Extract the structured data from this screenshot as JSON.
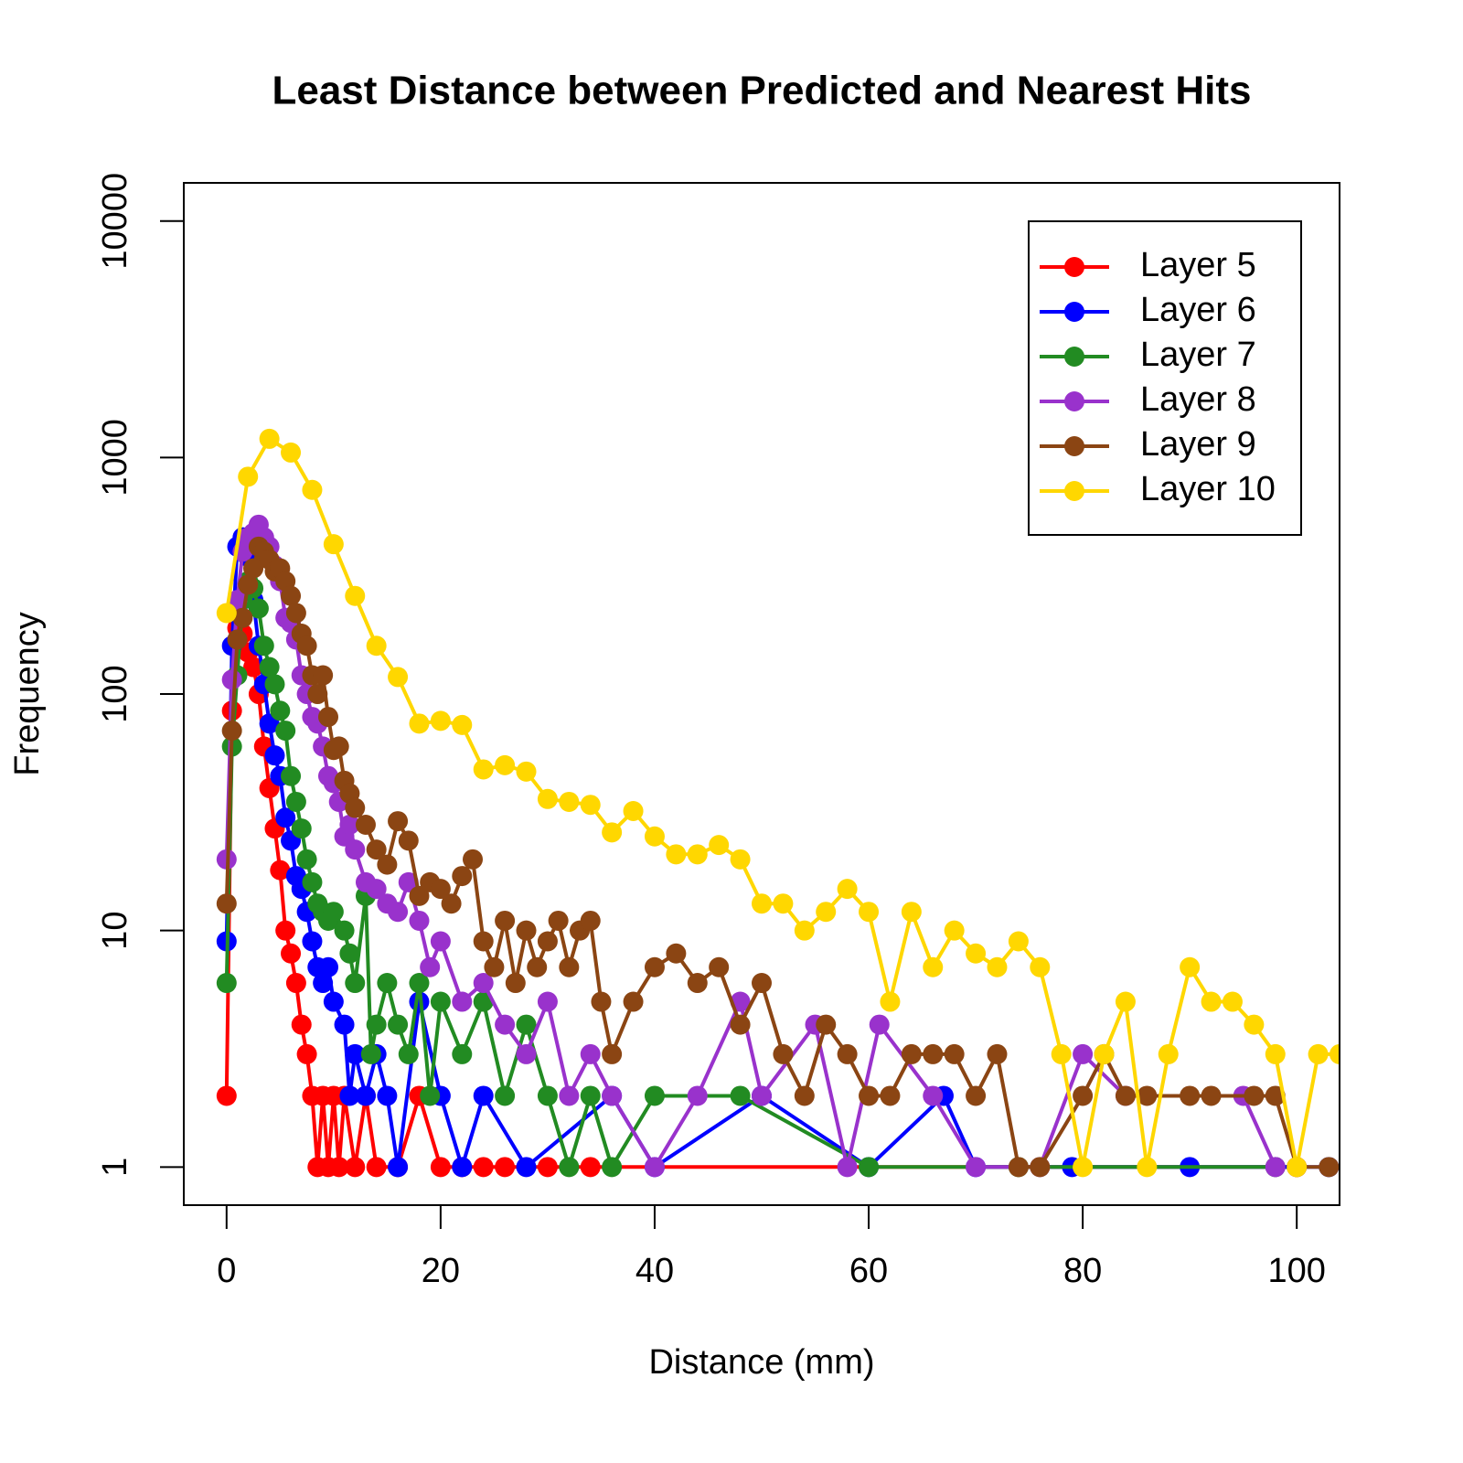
{
  "chart_data": {
    "type": "line",
    "title": "Least Distance between Predicted and Nearest Hits",
    "x_label": "Distance (mm)",
    "y_label": "Frequency",
    "xlim": [
      -4,
      104
    ],
    "ylim": [
      0.69,
      14500
    ],
    "y_log": true,
    "xticks": [
      0,
      20,
      40,
      60,
      80,
      100
    ],
    "yticks": [
      1,
      10,
      100,
      1000,
      10000
    ],
    "legend_position": "top-right",
    "series": [
      {
        "name": "Layer 5",
        "color": "#ff0000",
        "x": [
          0,
          0.5,
          1,
          1.5,
          2,
          2.5,
          3,
          3.5,
          4,
          4.5,
          5,
          5.5,
          6,
          6.5,
          7,
          7.5,
          8,
          8.5,
          9,
          9.5,
          10,
          10.5,
          11,
          12,
          13,
          14,
          16,
          18,
          20,
          22,
          24,
          26,
          30,
          34,
          100
        ],
        "values": [
          2,
          85,
          190,
          180,
          150,
          130,
          100,
          60,
          40,
          27,
          18,
          10,
          8,
          6,
          4,
          3,
          2,
          1,
          2,
          1,
          2,
          1,
          2,
          1,
          2,
          1,
          1,
          2,
          1,
          1,
          1,
          1,
          1,
          1,
          1
        ]
      },
      {
        "name": "Layer 6",
        "color": "#0000ff",
        "x": [
          0,
          0.5,
          1,
          1.5,
          2,
          2.5,
          3,
          3.5,
          4,
          4.5,
          5,
          5.5,
          6,
          6.5,
          7,
          7.5,
          8,
          8.5,
          9,
          9.5,
          10,
          11,
          11.5,
          12,
          13,
          14,
          15,
          16,
          18,
          20,
          22,
          24,
          28,
          36,
          40,
          50,
          60,
          67,
          70,
          79,
          90,
          103
        ],
        "values": [
          9,
          160,
          420,
          460,
          380,
          250,
          160,
          110,
          75,
          55,
          45,
          30,
          24,
          17,
          15,
          12,
          9,
          7,
          6,
          7,
          5,
          4,
          2,
          3,
          2,
          3,
          2,
          1,
          5,
          2,
          1,
          2,
          1,
          2,
          1,
          2,
          1,
          2,
          1,
          1,
          1,
          1
        ]
      },
      {
        "name": "Layer 7",
        "color": "#228b22",
        "x": [
          0,
          0.5,
          1,
          1.5,
          2,
          2.5,
          3,
          3.5,
          4,
          4.5,
          5,
          5.5,
          6,
          6.5,
          7,
          7.5,
          8,
          8.5,
          9,
          9.5,
          10,
          11,
          11.5,
          12,
          13,
          13.5,
          14,
          15,
          16,
          17,
          18,
          19,
          20,
          22,
          24,
          26,
          28,
          30,
          32,
          34,
          36,
          40,
          48,
          60,
          74,
          98
        ],
        "values": [
          6,
          60,
          120,
          250,
          300,
          280,
          230,
          160,
          130,
          110,
          85,
          70,
          45,
          35,
          27,
          20,
          16,
          13,
          12,
          11,
          12,
          10,
          8,
          6,
          14,
          3,
          4,
          6,
          4,
          3,
          6,
          2,
          5,
          3,
          5,
          2,
          4,
          2,
          1,
          2,
          1,
          2,
          2,
          1,
          1,
          1
        ]
      },
      {
        "name": "Layer 8",
        "color": "#9932cc",
        "x": [
          0,
          0.5,
          1,
          1.5,
          2,
          2.5,
          3,
          3.5,
          4,
          4.5,
          5,
          5.5,
          6,
          6.5,
          7,
          7.5,
          8,
          8.5,
          9,
          9.5,
          10,
          10.5,
          11,
          11.5,
          12,
          13,
          14,
          15,
          16,
          17,
          18,
          19,
          20,
          22,
          24,
          26,
          28,
          30,
          32,
          34,
          36,
          40,
          44,
          48,
          50,
          55,
          58,
          61,
          66,
          70,
          76,
          80,
          84,
          95,
          98
        ],
        "values": [
          20,
          115,
          250,
          400,
          460,
          480,
          520,
          460,
          420,
          350,
          300,
          210,
          200,
          170,
          120,
          100,
          80,
          75,
          60,
          45,
          42,
          35,
          25,
          28,
          22,
          16,
          15,
          13,
          12,
          16,
          11,
          7,
          9,
          5,
          6,
          4,
          3,
          5,
          2,
          3,
          2,
          1,
          2,
          5,
          2,
          4,
          1,
          4,
          2,
          1,
          1,
          3,
          2,
          2,
          1
        ]
      },
      {
        "name": "Layer 9",
        "color": "#8b4513",
        "x": [
          0,
          0.5,
          1,
          1.5,
          2,
          2.5,
          3,
          3.5,
          4,
          4.5,
          5,
          5.5,
          6,
          6.5,
          7,
          7.5,
          8,
          8.5,
          9,
          9.5,
          10,
          10.5,
          11,
          11.5,
          12,
          13,
          14,
          15,
          16,
          17,
          18,
          19,
          20,
          21,
          22,
          23,
          24,
          25,
          26,
          27,
          28,
          29,
          30,
          31,
          32,
          33,
          34,
          35,
          36,
          38,
          40,
          42,
          44,
          46,
          48,
          50,
          52,
          54,
          56,
          58,
          60,
          62,
          64,
          66,
          68,
          70,
          72,
          74,
          76,
          80,
          82,
          84,
          86,
          90,
          92,
          96,
          98,
          100,
          103
        ],
        "values": [
          13,
          70,
          170,
          210,
          290,
          340,
          420,
          400,
          370,
          330,
          340,
          300,
          260,
          220,
          180,
          160,
          120,
          100,
          120,
          80,
          58,
          60,
          43,
          38,
          33,
          28,
          22,
          19,
          29,
          24,
          14,
          16,
          15,
          13,
          17,
          20,
          9,
          7,
          11,
          6,
          10,
          7,
          9,
          11,
          7,
          10,
          11,
          5,
          3,
          5,
          7,
          8,
          6,
          7,
          4,
          6,
          3,
          2,
          4,
          3,
          2,
          2,
          3,
          3,
          3,
          2,
          3,
          1,
          1,
          2,
          3,
          2,
          2,
          2,
          2,
          2,
          2,
          1,
          1
        ]
      },
      {
        "name": "Layer 10",
        "color": "#ffd700",
        "x": [
          0,
          2,
          4,
          6,
          8,
          10,
          12,
          14,
          16,
          18,
          20,
          22,
          24,
          26,
          28,
          30,
          32,
          34,
          36,
          38,
          40,
          42,
          44,
          46,
          48,
          50,
          52,
          54,
          56,
          58,
          60,
          62,
          64,
          66,
          68,
          70,
          72,
          74,
          76,
          78,
          80,
          82,
          84,
          86,
          88,
          90,
          92,
          94,
          96,
          98,
          100,
          102,
          104
        ],
        "values": [
          220,
          830,
          1200,
          1050,
          730,
          430,
          260,
          160,
          118,
          75,
          77,
          74,
          48,
          50,
          47,
          36,
          35,
          34,
          26,
          32,
          25,
          21,
          21,
          23,
          20,
          13,
          13,
          10,
          12,
          15,
          12,
          5,
          12,
          7,
          10,
          8,
          7,
          9,
          7,
          3,
          1,
          3,
          5,
          1,
          3,
          7,
          5,
          5,
          4,
          3,
          1,
          3,
          3
        ]
      }
    ]
  }
}
